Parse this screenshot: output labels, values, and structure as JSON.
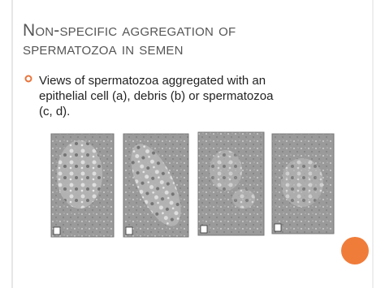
{
  "title": "Non-specific aggregation of spermatozoa in semen",
  "bullets": [
    "Views of spermatozoa aggregated with an epithelial cell (a), debris (b) or spermatozoa (c, d)."
  ]
}
